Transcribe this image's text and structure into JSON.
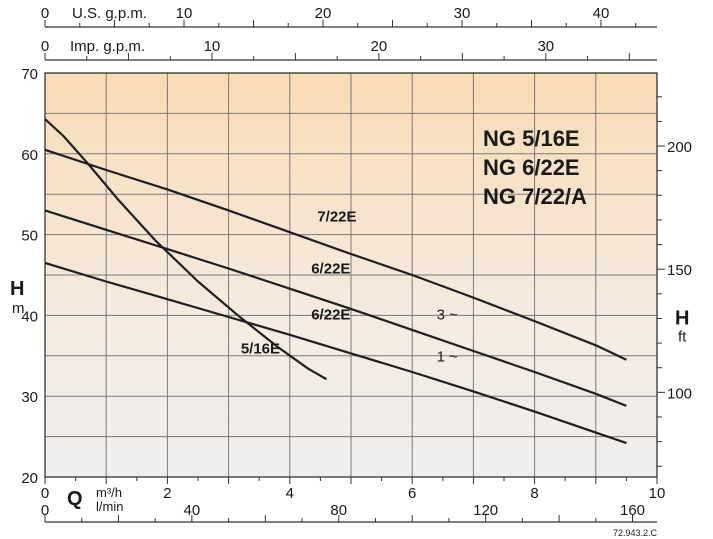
{
  "chart_data": {
    "type": "line",
    "title": [
      "NG 5/16E",
      "NG 6/22E",
      "NG 7/22/A"
    ],
    "code": "72.943.2.C",
    "xlabel": {
      "symbol": "Q",
      "unit_top": "m³/h",
      "unit_bottom": "l/min"
    },
    "ylabel_left": {
      "symbol": "H",
      "unit": "m"
    },
    "ylabel_right": {
      "symbol": "H",
      "unit": "ft"
    },
    "top_axis_us": {
      "label": "U.S. g.p.m.",
      "ticks": [
        "0",
        "10",
        "20",
        "30",
        "40"
      ],
      "values": [
        0,
        10,
        20,
        30,
        40
      ]
    },
    "top_axis_imp": {
      "label": "Imp. g.p.m.",
      "ticks": [
        "0",
        "10",
        "20",
        "30"
      ],
      "values": [
        0,
        10,
        20,
        30
      ]
    },
    "bottom_axis_m3h": {
      "ticks": [
        "0",
        "2",
        "4",
        "6",
        "8",
        "10"
      ],
      "values": [
        0,
        2,
        4,
        6,
        8,
        10
      ]
    },
    "bottom_axis_lmin": {
      "ticks": [
        "0",
        "40",
        "80",
        "120",
        "160"
      ],
      "values": [
        0,
        40,
        80,
        120,
        160
      ]
    },
    "left_axis": {
      "ticks": [
        "20",
        "30",
        "40",
        "50",
        "60",
        "70"
      ],
      "values": [
        20,
        30,
        40,
        50,
        60,
        70
      ]
    },
    "right_axis": {
      "ticks": [
        "100",
        "150",
        "200"
      ],
      "values": [
        100,
        150,
        200
      ]
    },
    "xlim": [
      0,
      10
    ],
    "ylim": [
      20,
      70
    ],
    "grid": true,
    "series": [
      {
        "name": "7/22E",
        "label_x": 4.45,
        "label_y": 51.6,
        "x": [
          0,
          1,
          2,
          3,
          4,
          5,
          6,
          7,
          8,
          9,
          9.5
        ],
        "y": [
          60.5,
          58.0,
          55.6,
          53.0,
          50.3,
          47.6,
          45.0,
          42.2,
          39.3,
          36.3,
          34.5
        ]
      },
      {
        "name": "6/22E",
        "note": "3 ~",
        "label_x": 4.35,
        "label_y": 45.2,
        "note_x": 6.4,
        "note_y": 39.5,
        "x": [
          0,
          1,
          2,
          3,
          4,
          5,
          6,
          7,
          8,
          9,
          9.5
        ],
        "y": [
          53.0,
          50.6,
          48.2,
          45.8,
          43.3,
          40.8,
          38.2,
          35.6,
          33.0,
          30.3,
          28.8
        ]
      },
      {
        "name": "6/22E",
        "note": "1 ~",
        "label_x": 4.35,
        "label_y": 39.5,
        "note_x": 6.4,
        "note_y": 34.3,
        "x": [
          0,
          1,
          2,
          3,
          4,
          5,
          6,
          7,
          8,
          9,
          9.5
        ],
        "y": [
          46.5,
          44.2,
          42.0,
          39.8,
          37.6,
          35.3,
          33.0,
          30.6,
          28.1,
          25.5,
          24.2
        ]
      },
      {
        "name": "5/16E",
        "label_x": 3.2,
        "label_y": 35.3,
        "x": [
          0,
          0.3,
          0.7,
          1.2,
          1.8,
          2.5,
          3.2,
          3.8,
          4.3,
          4.6
        ],
        "y": [
          64.3,
          62.2,
          58.8,
          54.3,
          49.3,
          44.2,
          39.7,
          36.1,
          33.4,
          32.1
        ]
      }
    ]
  }
}
